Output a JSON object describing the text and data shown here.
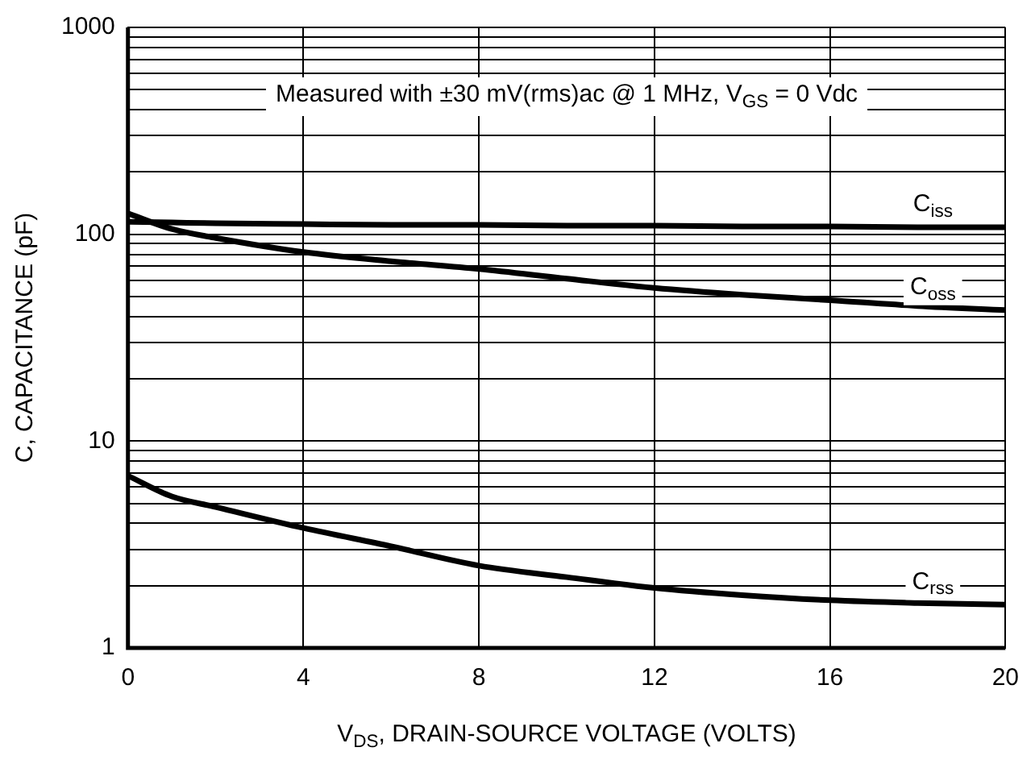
{
  "chart_data": {
    "type": "line",
    "xlabel": "V$_{DS}$, DRAIN-SOURCE VOLTAGE (VOLTS)",
    "ylabel": "C, CAPACITANCE (pF)",
    "annotations": [
      "Measured with ±30 mV(rms)ac @ 1 MHz, V$_{GS}$ = 0 Vdc"
    ],
    "x": [
      0,
      1,
      2,
      4,
      6,
      8,
      10,
      12,
      14,
      16,
      18,
      20
    ],
    "series": [
      {
        "name": "C$_{iss}$",
        "color": "#000000",
        "values": [
          115,
          114,
          113,
          112,
          111,
          111,
          110,
          110,
          109,
          109,
          108,
          108
        ]
      },
      {
        "name": "C$_{oss}$",
        "color": "#000000",
        "values": [
          126,
          106,
          96,
          82,
          74,
          68,
          61,
          55,
          51,
          48,
          45,
          43
        ]
      },
      {
        "name": "C$_{rss}$",
        "color": "#000000",
        "values": [
          6.8,
          5.4,
          4.8,
          3.8,
          3.1,
          2.5,
          2.2,
          1.95,
          1.8,
          1.7,
          1.65,
          1.62
        ]
      }
    ],
    "log": "y",
    "xlim": [
      0,
      20
    ],
    "xticks": [
      0,
      4,
      8,
      12,
      16,
      20
    ],
    "ylim": [
      1,
      1000
    ],
    "yticks": [
      1,
      {
        "value": 2,
        "label": null
      },
      {
        "value": 3,
        "label": null
      },
      {
        "value": 4,
        "label": null
      },
      {
        "value": 5,
        "label": null
      },
      {
        "value": 6,
        "label": null
      },
      {
        "value": 7,
        "label": null
      },
      {
        "value": 8,
        "label": null
      },
      {
        "value": 9,
        "label": null
      },
      10,
      {
        "value": 20,
        "label": null
      },
      {
        "value": 30,
        "label": null
      },
      {
        "value": 40,
        "label": null
      },
      {
        "value": 50,
        "label": null
      },
      {
        "value": 60,
        "label": null
      },
      {
        "value": 70,
        "label": null
      },
      {
        "value": 80,
        "label": null
      },
      {
        "value": 90,
        "label": null
      },
      100,
      {
        "value": 200,
        "label": null
      },
      {
        "value": 300,
        "label": null
      },
      {
        "value": 400,
        "label": null
      },
      {
        "value": 500,
        "label": null
      },
      {
        "value": 600,
        "label": null
      },
      {
        "value": 700,
        "label": null
      },
      {
        "value": 800,
        "label": null
      },
      {
        "value": 900,
        "label": null
      },
      1000
    ],
    "grid": true,
    "legend": false,
    "marker": "none",
    "line_style": "solid"
  }
}
